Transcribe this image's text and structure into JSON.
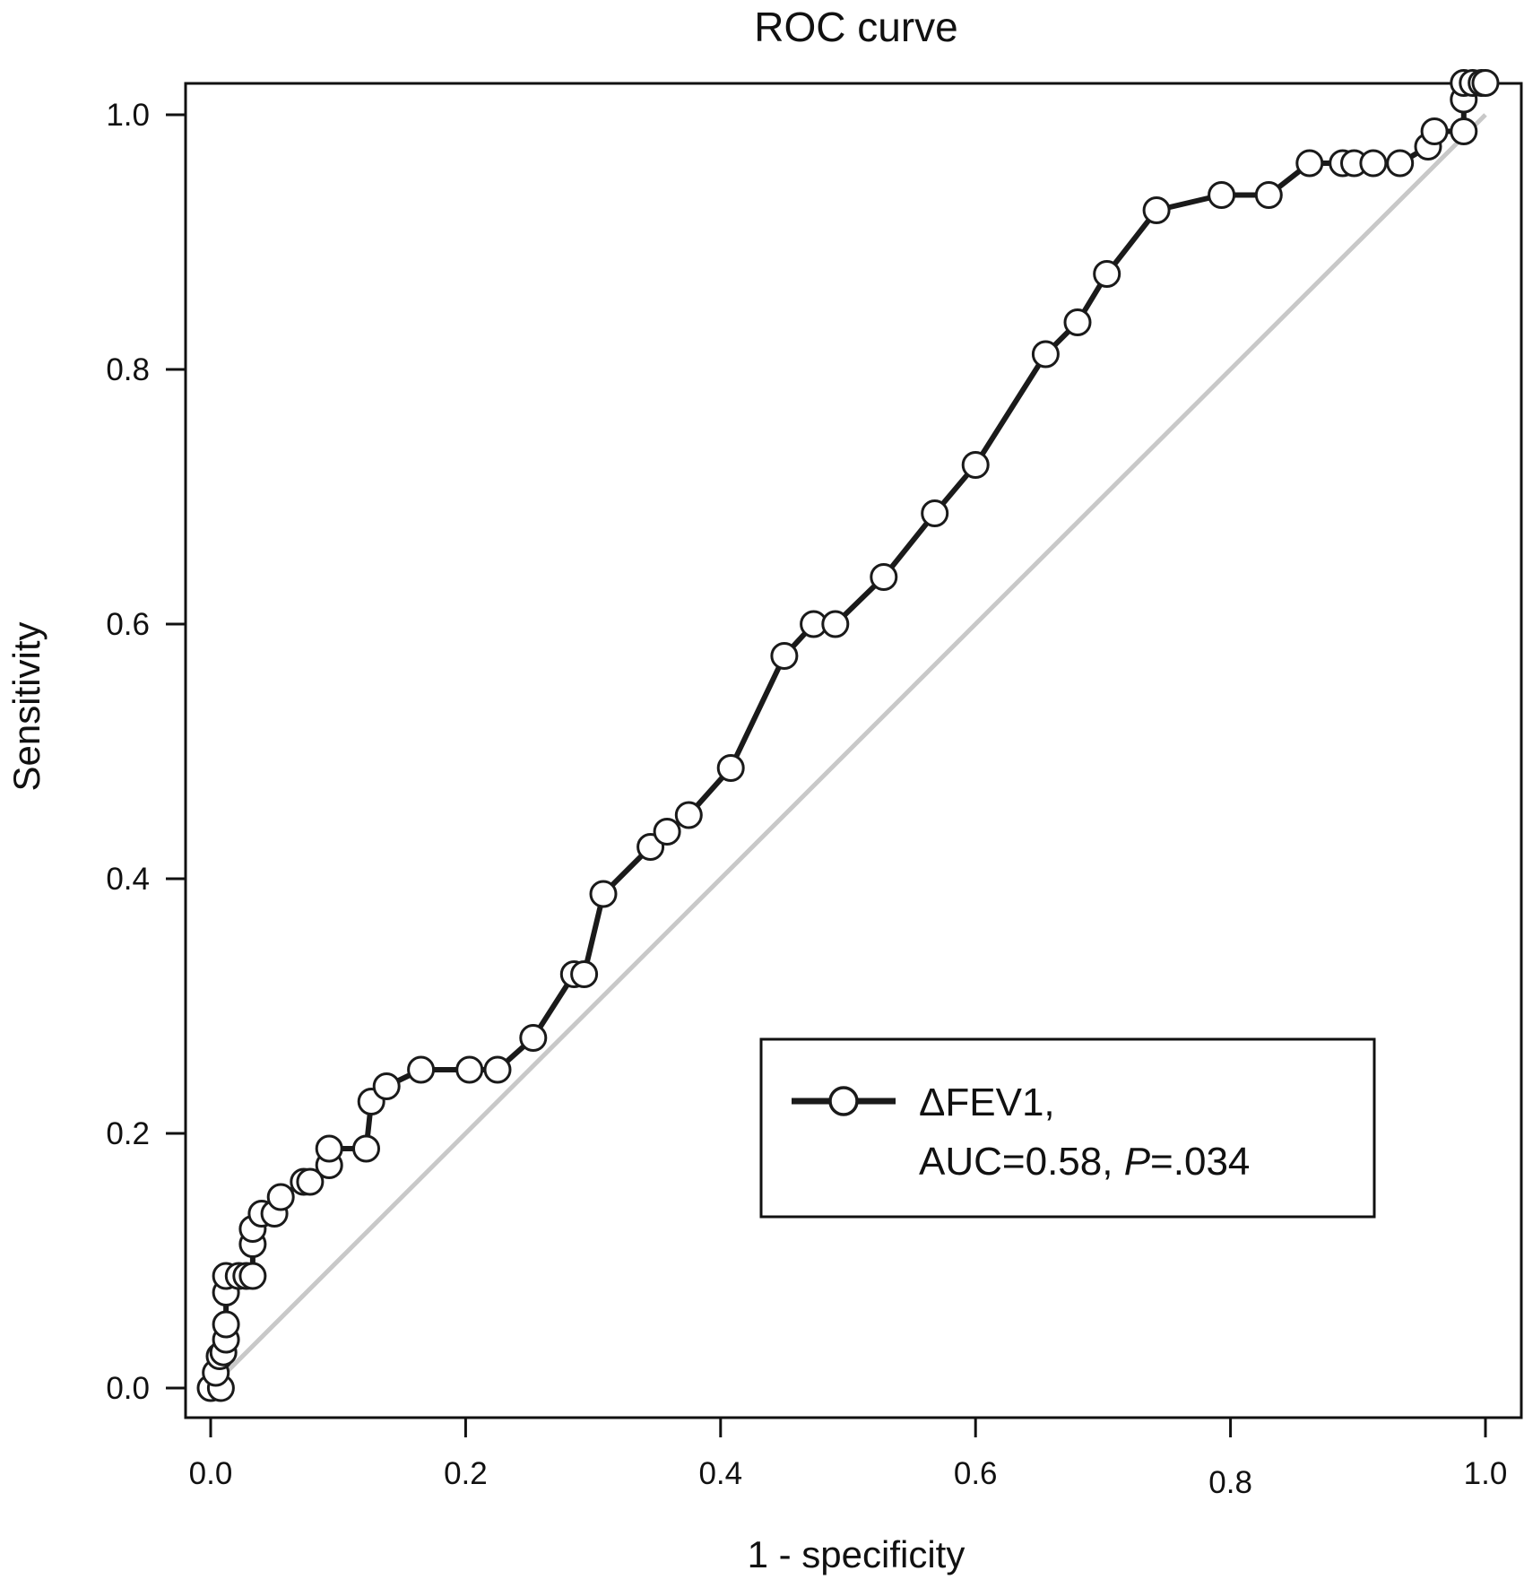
{
  "chart_data": {
    "type": "line",
    "title": "ROC curve",
    "xlabel": "1 - specificity",
    "ylabel": "Sensitivity",
    "xlim": [
      0.0,
      1.0
    ],
    "ylim": [
      0.0,
      1.0
    ],
    "x_ticks": [
      "0.0",
      "0.2",
      "0.4",
      "0.6",
      "0.8",
      "1.0"
    ],
    "y_ticks": [
      "0.0",
      "0.2",
      "0.4",
      "0.6",
      "0.8",
      "1.0"
    ],
    "grid": false,
    "legend_position": "bottom-right",
    "legend_lines": [
      "ΔFEV1,",
      "AUC=0.58, ",
      "P",
      "=.034"
    ],
    "series": [
      {
        "name": "ΔFEV1",
        "color": "#1a1a1a",
        "marker": "open-circle",
        "points": [
          [
            0.0,
            0.0
          ],
          [
            0.008,
            0.0
          ],
          [
            0.004,
            0.012
          ],
          [
            0.007,
            0.025
          ],
          [
            0.01,
            0.028
          ],
          [
            0.012,
            0.038
          ],
          [
            0.012,
            0.05
          ],
          [
            0.012,
            0.075
          ],
          [
            0.012,
            0.088
          ],
          [
            0.022,
            0.088
          ],
          [
            0.028,
            0.088
          ],
          [
            0.033,
            0.088
          ],
          [
            0.033,
            0.113
          ],
          [
            0.033,
            0.125
          ],
          [
            0.04,
            0.137
          ],
          [
            0.05,
            0.137
          ],
          [
            0.055,
            0.15
          ],
          [
            0.073,
            0.162
          ],
          [
            0.078,
            0.162
          ],
          [
            0.093,
            0.175
          ],
          [
            0.093,
            0.188
          ],
          [
            0.122,
            0.188
          ],
          [
            0.126,
            0.225
          ],
          [
            0.138,
            0.237
          ],
          [
            0.165,
            0.25
          ],
          [
            0.203,
            0.25
          ],
          [
            0.225,
            0.25
          ],
          [
            0.253,
            0.275
          ],
          [
            0.285,
            0.325
          ],
          [
            0.293,
            0.325
          ],
          [
            0.308,
            0.388
          ],
          [
            0.345,
            0.425
          ],
          [
            0.358,
            0.437
          ],
          [
            0.375,
            0.45
          ],
          [
            0.408,
            0.487
          ],
          [
            0.45,
            0.575
          ],
          [
            0.473,
            0.6
          ],
          [
            0.49,
            0.6
          ],
          [
            0.528,
            0.637
          ],
          [
            0.568,
            0.687
          ],
          [
            0.6,
            0.725
          ],
          [
            0.655,
            0.812
          ],
          [
            0.68,
            0.837
          ],
          [
            0.703,
            0.875
          ],
          [
            0.742,
            0.925
          ],
          [
            0.793,
            0.937
          ],
          [
            0.83,
            0.937
          ],
          [
            0.862,
            0.962
          ],
          [
            0.888,
            0.962
          ],
          [
            0.897,
            0.962
          ],
          [
            0.912,
            0.962
          ],
          [
            0.933,
            0.962
          ],
          [
            0.955,
            0.975
          ],
          [
            0.96,
            0.987
          ],
          [
            0.983,
            0.987
          ],
          [
            0.983,
            1.012
          ],
          [
            0.983,
            1.025
          ],
          [
            0.99,
            1.025
          ],
          [
            0.997,
            1.025
          ],
          [
            1.0,
            1.025
          ]
        ]
      },
      {
        "name": "reference",
        "color": "#c8c8c8",
        "marker": "none",
        "points": [
          [
            0.0,
            0.0
          ],
          [
            1.0,
            1.0
          ]
        ]
      }
    ]
  }
}
